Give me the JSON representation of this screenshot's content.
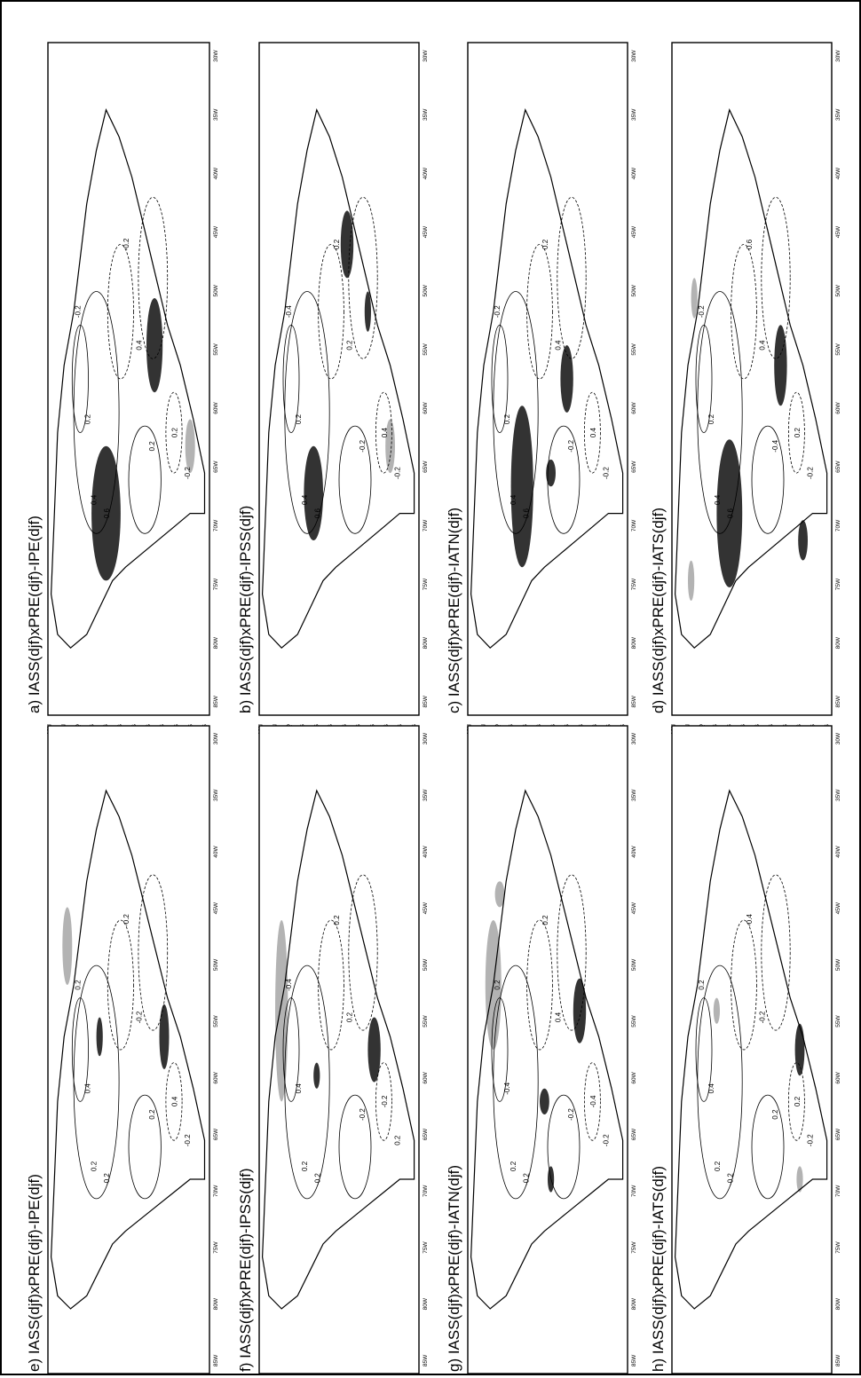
{
  "panels": [
    {
      "label": "a) IASS(djf)xPRE(djf)-IPE(djf)"
    },
    {
      "label": "b) IASS(djf)xPRE(djf)-IPSS(djf)"
    },
    {
      "label": "c) IASS(djf)xPRE(djf)-IATN(djf)"
    },
    {
      "label": "d) IASS(djf)xPRE(djf)-IATS(djf)"
    },
    {
      "label": "e) IASS(djf)xPRE(djf)-IPE(djf)"
    },
    {
      "label": "f) IASS(djf)xPRE(djf)-IPSS(djf)"
    },
    {
      "label": "g) IASS(djf)xPRE(djf)-IATN(djf)"
    },
    {
      "label": "h) IASS(djf)xPRE(djf)-IATS(djf)"
    }
  ],
  "lat_ticks": [
    "10N",
    "5N",
    "EQ",
    "5S",
    "10S",
    "15S",
    "20S",
    "25S",
    "30S",
    "35S",
    "40S",
    "45S"
  ],
  "lon_ticks": [
    "85W",
    "80W",
    "75W",
    "70W",
    "65W",
    "60W",
    "55W",
    "50W",
    "45W",
    "40W",
    "35W",
    "30W"
  ],
  "contour_labels": {
    "a": [
      "0.4",
      "0.6",
      "0.2",
      "-0.2",
      "0.4",
      "0.2",
      "-0.2",
      "0.2",
      "-0.2"
    ],
    "b": [
      "0.4",
      "0.6",
      "0.2",
      "-0.4",
      "0.2",
      "-0.2",
      "0.2",
      "0.4",
      "-0.2"
    ],
    "c": [
      "0.4",
      "0.6",
      "0.2",
      "-0.2",
      "0.4",
      "-0.2",
      "0.2",
      "0.4",
      "-0.2"
    ],
    "d": [
      "0.4",
      "0.6",
      "0.2",
      "-0.2",
      "0.4",
      "-0.4",
      "0.6",
      "0.2",
      "-0.2"
    ],
    "e": [
      "0.2",
      "-0.2",
      "0.4",
      "0.2",
      "-0.2",
      "0.2",
      "-0.2",
      "0.4",
      "-0.2"
    ],
    "f": [
      "0.2",
      "-0.2",
      "0.4",
      "-0.4",
      "0.2",
      "-0.2",
      "0.2",
      "-0.2",
      "0.2"
    ],
    "g": [
      "0.2",
      "-0.2",
      "-0.4",
      "0.2",
      "0.4",
      "-0.2",
      "0.2",
      "-0.4",
      "-0.2"
    ],
    "h": [
      "0.2",
      "-0.2",
      "0.4",
      "0.2",
      "-0.2",
      "0.2",
      "-0.4",
      "0.2",
      "-0.2"
    ]
  },
  "colors": {
    "positive_significant": "#333333",
    "negative_significant": "#b3b3b3",
    "line": "#000000"
  }
}
